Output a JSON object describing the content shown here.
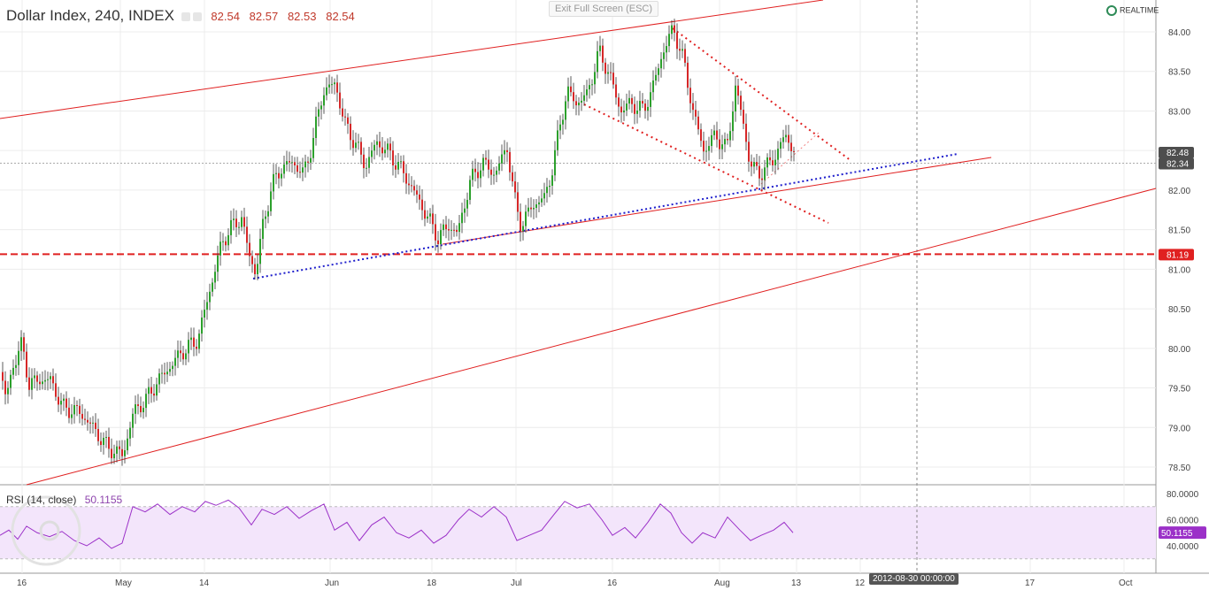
{
  "header": {
    "title": "Dollar Index, 240, INDEX",
    "ohlc": [
      "82.54",
      "82.57",
      "82.53",
      "82.54"
    ]
  },
  "exit_button": "Exit Full Screen (ESC)",
  "realtime_label": "REALTIME",
  "rsi": {
    "label": "RSI (14, close)",
    "value": "50.1155"
  },
  "crosshair_date": "2012-08-30 00:00:00",
  "chart_data": [
    {
      "type": "candlestick",
      "ylim": [
        78.25,
        84.3
      ],
      "y_ticks": [
        "84.00",
        "83.50",
        "83.00",
        "82.50",
        "82.00",
        "81.50",
        "81.00",
        "80.50",
        "80.00",
        "79.50",
        "79.00",
        "78.50"
      ],
      "x_ticks": [
        "16",
        "May",
        "14",
        "Jun",
        "18",
        "Jul",
        "16",
        "Aug",
        "13",
        "12",
        "17",
        "Oct"
      ],
      "price_tags": [
        {
          "value": 82.48,
          "label": "82.48",
          "color": "#4e4e4e"
        },
        {
          "value": 82.34,
          "label": "82.34",
          "color": "#4e4e4e"
        },
        {
          "value": 81.19,
          "label": "81.19",
          "color": "#e02020"
        }
      ],
      "horizontal_level": 81.19,
      "colors": {
        "up": "#2ca02c",
        "down": "#d62728",
        "channel": "#e02020",
        "trend": "#1f1fcc"
      },
      "price_path": [
        [
          0,
          79.7
        ],
        [
          6,
          79.35
        ],
        [
          14,
          79.8
        ],
        [
          24,
          80.05
        ],
        [
          32,
          79.55
        ],
        [
          44,
          79.6
        ],
        [
          56,
          79.6
        ],
        [
          70,
          79.25
        ],
        [
          88,
          79.2
        ],
        [
          104,
          79.0
        ],
        [
          120,
          78.75
        ],
        [
          138,
          78.65
        ],
        [
          150,
          79.2
        ],
        [
          164,
          79.35
        ],
        [
          178,
          79.6
        ],
        [
          190,
          79.75
        ],
        [
          204,
          79.95
        ],
        [
          222,
          80.1
        ],
        [
          232,
          80.55
        ],
        [
          242,
          81.0
        ],
        [
          250,
          81.35
        ],
        [
          262,
          81.55
        ],
        [
          272,
          81.65
        ],
        [
          280,
          81.2
        ],
        [
          288,
          80.95
        ],
        [
          296,
          81.55
        ],
        [
          306,
          82.05
        ],
        [
          318,
          82.3
        ],
        [
          330,
          82.35
        ],
        [
          342,
          82.2
        ],
        [
          352,
          82.6
        ],
        [
          364,
          83.25
        ],
        [
          378,
          83.35
        ],
        [
          388,
          82.85
        ],
        [
          400,
          82.6
        ],
        [
          412,
          82.3
        ],
        [
          424,
          82.6
        ],
        [
          436,
          82.5
        ],
        [
          450,
          82.3
        ],
        [
          466,
          82.0
        ],
        [
          480,
          81.7
        ],
        [
          494,
          81.4
        ],
        [
          506,
          81.55
        ],
        [
          516,
          81.45
        ],
        [
          530,
          82.1
        ],
        [
          544,
          82.35
        ],
        [
          558,
          82.2
        ],
        [
          572,
          82.55
        ],
        [
          580,
          81.9
        ],
        [
          588,
          81.55
        ],
        [
          600,
          81.8
        ],
        [
          614,
          81.9
        ],
        [
          624,
          82.3
        ],
        [
          632,
          82.85
        ],
        [
          640,
          83.25
        ],
        [
          650,
          83.1
        ],
        [
          662,
          83.2
        ],
        [
          676,
          83.75
        ],
        [
          688,
          83.45
        ],
        [
          700,
          83.0
        ],
        [
          712,
          83.1
        ],
        [
          726,
          83.0
        ],
        [
          738,
          83.35
        ],
        [
          748,
          83.75
        ],
        [
          760,
          84.05
        ],
        [
          772,
          83.6
        ],
        [
          782,
          83.0
        ],
        [
          794,
          82.5
        ],
        [
          808,
          82.7
        ],
        [
          820,
          82.5
        ],
        [
          830,
          83.3
        ],
        [
          838,
          82.9
        ],
        [
          846,
          82.35
        ],
        [
          856,
          82.2
        ],
        [
          866,
          82.3
        ],
        [
          876,
          82.45
        ],
        [
          886,
          82.7
        ],
        [
          896,
          82.5
        ]
      ],
      "rsi_path": [
        [
          0,
          48
        ],
        [
          10,
          52
        ],
        [
          20,
          45
        ],
        [
          30,
          55
        ],
        [
          42,
          50
        ],
        [
          56,
          47
        ],
        [
          70,
          51
        ],
        [
          84,
          44
        ],
        [
          98,
          40
        ],
        [
          112,
          46
        ],
        [
          126,
          38
        ],
        [
          138,
          42
        ],
        [
          150,
          70
        ],
        [
          164,
          66
        ],
        [
          178,
          72
        ],
        [
          192,
          64
        ],
        [
          206,
          70
        ],
        [
          220,
          66
        ],
        [
          232,
          74
        ],
        [
          244,
          71
        ],
        [
          258,
          75
        ],
        [
          270,
          69
        ],
        [
          284,
          56
        ],
        [
          296,
          68
        ],
        [
          310,
          64
        ],
        [
          324,
          70
        ],
        [
          338,
          61
        ],
        [
          352,
          67
        ],
        [
          366,
          72
        ],
        [
          378,
          52
        ],
        [
          392,
          58
        ],
        [
          406,
          44
        ],
        [
          420,
          56
        ],
        [
          434,
          62
        ],
        [
          448,
          50
        ],
        [
          462,
          46
        ],
        [
          476,
          52
        ],
        [
          490,
          42
        ],
        [
          504,
          48
        ],
        [
          518,
          60
        ],
        [
          530,
          68
        ],
        [
          544,
          62
        ],
        [
          558,
          70
        ],
        [
          572,
          62
        ],
        [
          584,
          44
        ],
        [
          598,
          48
        ],
        [
          612,
          52
        ],
        [
          626,
          64
        ],
        [
          638,
          74
        ],
        [
          652,
          69
        ],
        [
          666,
          72
        ],
        [
          680,
          60
        ],
        [
          692,
          48
        ],
        [
          706,
          54
        ],
        [
          718,
          46
        ],
        [
          732,
          58
        ],
        [
          746,
          72
        ],
        [
          758,
          65
        ],
        [
          770,
          50
        ],
        [
          782,
          42
        ],
        [
          794,
          50
        ],
        [
          808,
          46
        ],
        [
          822,
          62
        ],
        [
          836,
          52
        ],
        [
          848,
          44
        ],
        [
          860,
          48
        ],
        [
          874,
          52
        ],
        [
          886,
          58
        ],
        [
          896,
          50
        ]
      ]
    }
  ]
}
